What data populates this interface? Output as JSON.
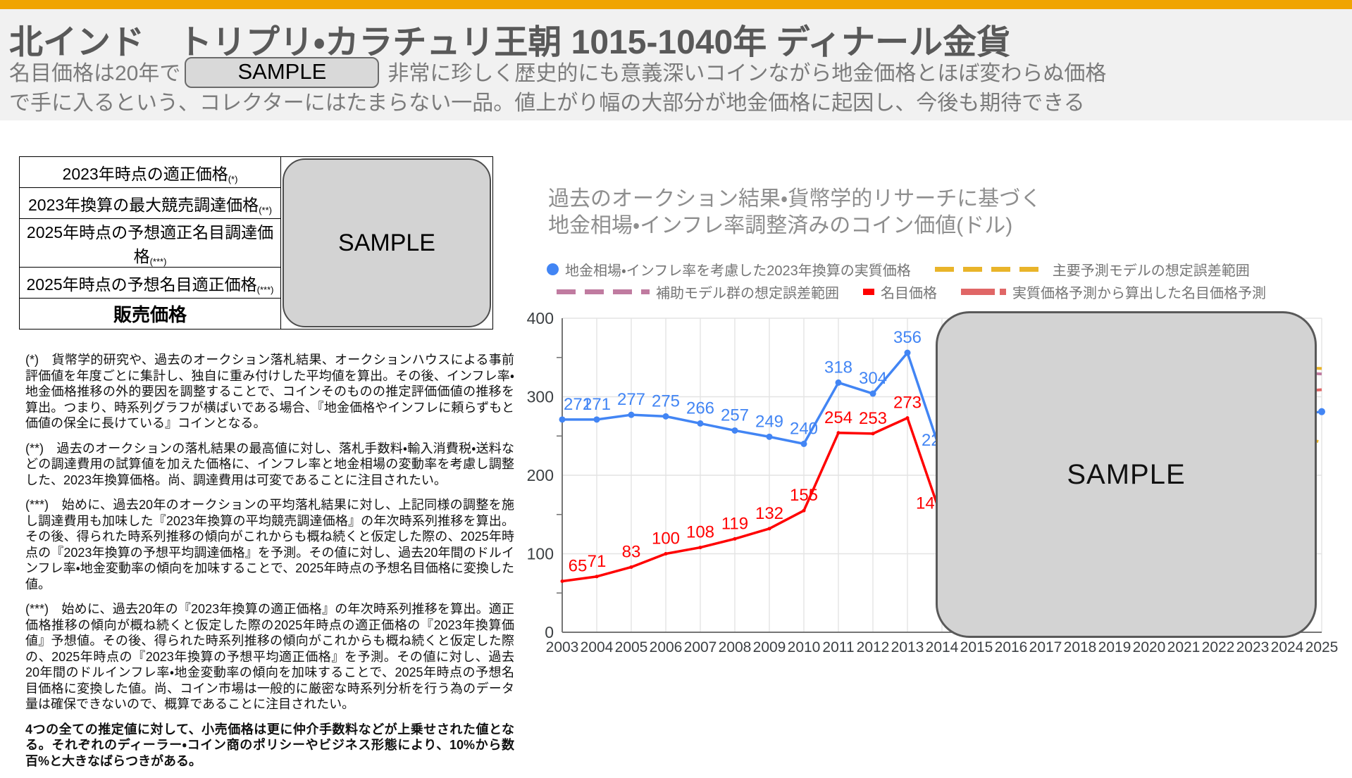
{
  "header": {
    "title": "北インド　トリプリ・カラチュリ王朝 1015-1040年 ディナール金貨",
    "subtitle_prefix": "名目価格は20年で",
    "subtitle_sample": "SAMPLE",
    "subtitle_suffix": "非常に珍しく歴史的にも意義深いコインながら地金価格とほぼ変わらぬ価格で手に入るという、コレクターにはたまらない一品。値上がり幅の大部分が地金価格に起因し、今後も期待できる"
  },
  "price_table": {
    "sample_label": "SAMPLE",
    "rows": [
      {
        "label": "2023年時点の適正価格",
        "note": "(*)",
        "bold": false
      },
      {
        "label": "2023年換算の最大競売調達価格",
        "note": "(**)",
        "bold": false
      },
      {
        "label": "2025年時点の予想適正名目調達価格",
        "note": "(***)",
        "bold": false
      },
      {
        "label": "2025年時点の予想名目適正価格",
        "note": "(***)",
        "bold": false
      },
      {
        "label": "販売価格",
        "note": "",
        "bold": true
      }
    ]
  },
  "footnotes": [
    {
      "bold": false,
      "text": "(*)　貨幣学的研究や、過去のオークション落札結果、オークションハウスによる事前評価値を年度ごとに集計し、独自に重み付けした平均値を算出。その後、インフレ率・地金価格推移の外的要因を調整することで、コインそのものの推定評価価値の推移を算出。つまり、時系列グラフが横ばいである場合、『地金価格やインフレに頼らずもと価値の保全に長けている』コインとなる。"
    },
    {
      "bold": false,
      "text": "(**)　過去のオークションの落札結果の最高値に対し、落札手数料・輸入消費税・送料などの調達費用の試算値を加えた価格に、インフレ率と地金相場の変動率を考慮し調整した、2023年換算価格。尚、調達費用は可変であることに注目されたい。"
    },
    {
      "bold": false,
      "text": "(***)　始めに、過去20年のオークションの平均落札結果に対し、上記同様の調整を施し調達費用も加味した『2023年換算の平均競売調達価格』の年次時系列推移を算出。その後、得られた時系列推移の傾向がこれからも概ね続くと仮定した際の、2025年時点の『2023年換算の予想平均調達価格』を予測。その値に対し、過去20年間のドルインフレ率・地金変動率の傾向を加味することで、2025年時点の予想名目価格に変換した値。"
    },
    {
      "bold": false,
      "text": "(***)　始めに、過去20年の『2023年換算の適正価格』の年次時系列推移を算出。適正価格推移の傾向が概ね続くと仮定した際の2025年時点の適正価格の『2023年換算価値』予想値。その後、得られた時系列推移の傾向がこれからも概ね続くと仮定した際の、2025年時点の『2023年換算の予想平均適正価格』を予測。その値に対し、過去20年間のドルインフレ率・地金変動率の傾向を加味することで、2025年時点の予想名目価格に変換した値。尚、コイン市場は一般的に厳密な時系列分析を行う為のデータ量は確保できないので、概算であることに注目されたい。"
    },
    {
      "bold": true,
      "text": "4つの全ての推定値に対して、小売価格は更に仲介手数料などが上乗せされた値となる。それぞれのディーラー・コイン商のポリシーやビジネス形態により、10%から数百%と大きなばらつきがある。"
    }
  ],
  "chart": {
    "title_line1": "過去のオークション結果・貨幣学的リサーチに基づく",
    "title_line2": "地金相場・インフレ率調整済みのコイン価値(ドル)",
    "sample_label": "SAMPLE",
    "legend_rows": [
      [
        {
          "swatch": "dot",
          "color": "#4285F4",
          "label": "地金相場・インフレ率を考慮した2023年換算の実質価格"
        },
        {
          "swatch": "dash-long",
          "color": "#E9B42A",
          "label": "主要予測モデルの想定誤差範囲"
        }
      ],
      [
        {
          "swatch": "dash-mid",
          "color": "#C07BA0",
          "label": "補助モデル群の想定誤差範囲"
        },
        {
          "swatch": "square",
          "color": "#FF0000",
          "label": "名目価格"
        },
        {
          "swatch": "dashdot",
          "color": "#E06666",
          "label": "実質価格予測から算出した名目価格予測"
        }
      ]
    ]
  },
  "chart_data": {
    "type": "line",
    "title": "過去のオークション結果・貨幣学的リサーチに基づく 地金相場・インフレ率調整済みのコイン価値(ドル)",
    "x": [
      "2003",
      "2004",
      "2005",
      "2006",
      "2007",
      "2008",
      "2009",
      "2010",
      "2011",
      "2012",
      "2013",
      "2014",
      "2015",
      "2016",
      "2017",
      "2018",
      "2019",
      "2020",
      "2021",
      "2022",
      "2023",
      "2024",
      "2025"
    ],
    "ylim": [
      0,
      400
    ],
    "yticks": [
      0,
      100,
      200,
      300,
      400
    ],
    "grid": true,
    "legend_position": "top",
    "obscured_region": {
      "label": "SAMPLE",
      "from_year": "2014",
      "to_year": "2024"
    },
    "series": [
      {
        "name": "地金相場・インフレ率を考慮した2023年換算の実質価格",
        "color": "#4285F4",
        "style": "solid",
        "markers": true,
        "years": [
          "2003",
          "2004",
          "2005",
          "2006",
          "2007",
          "2008",
          "2009",
          "2010",
          "2011",
          "2012",
          "2013",
          "2014"
        ],
        "values": [
          271,
          271,
          277,
          275,
          266,
          257,
          249,
          240,
          318,
          304,
          356,
          225
        ],
        "last_label_partially_hidden": "22",
        "label_clip_offset": -29,
        "edge_value_2025": 281
      },
      {
        "name": "名目価格",
        "color": "#FF0000",
        "style": "solid",
        "markers": false,
        "years": [
          "2003",
          "2004",
          "2005",
          "2006",
          "2007",
          "2008",
          "2009",
          "2010",
          "2011",
          "2012",
          "2013",
          "2014"
        ],
        "values": [
          65,
          71,
          83,
          100,
          108,
          119,
          132,
          155,
          254,
          253,
          273,
          145
        ],
        "last_label_partially_hidden": "14",
        "label_clip_offset": -37
      },
      {
        "name": "主要予測モデルの想定誤差範囲",
        "color": "#E9B42A",
        "style": "dashed",
        "start_value": 356,
        "edge_values_2025": [
          336,
          242
        ]
      },
      {
        "name": "補助モデル群の想定誤差範囲",
        "color": "#C07BA0",
        "style": "dashed",
        "start_value": 356,
        "edge_values_2025": [
          329,
          218
        ]
      },
      {
        "name": "実質価格予測から算出した名目価格予測",
        "color": "#E06666",
        "style": "dashed",
        "start_value": 273,
        "edge_values_2025": [
          309
        ]
      }
    ]
  }
}
